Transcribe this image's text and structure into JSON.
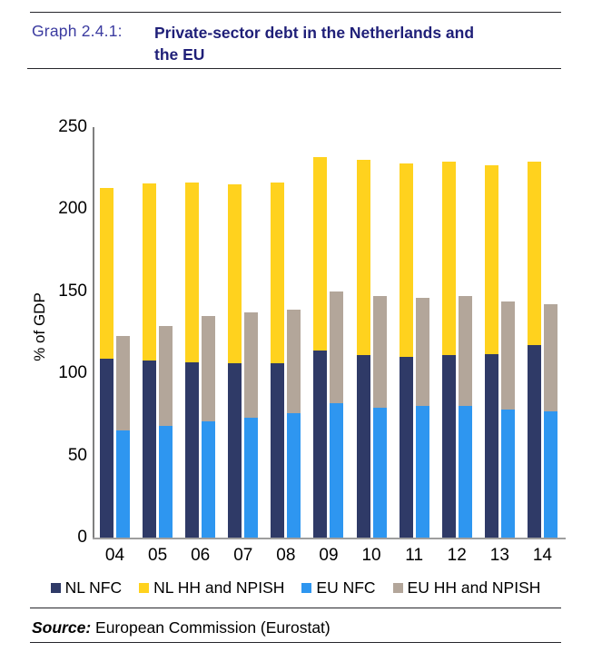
{
  "header": {
    "label": "Graph 2.4.1:",
    "title_lines": [
      "Private-sector debt in the Netherlands and",
      "the EU"
    ]
  },
  "chart_data": {
    "type": "bar",
    "stacked": true,
    "title": "Private-sector debt in the Netherlands and the EU",
    "xlabel": "",
    "ylabel": "% of GDP",
    "ylim": [
      0,
      250
    ],
    "yticks": [
      0,
      50,
      100,
      150,
      200,
      250
    ],
    "grid": false,
    "legend_position": "bottom",
    "categories": [
      "04",
      "05",
      "06",
      "07",
      "08",
      "09",
      "10",
      "11",
      "12",
      "13",
      "14"
    ],
    "stacks": [
      {
        "name": "NL",
        "series_names": [
          "NL NFC",
          "NL HH and NPISH"
        ]
      },
      {
        "name": "EU",
        "series_names": [
          "EU NFC",
          "EU HH and NPISH"
        ]
      }
    ],
    "series": [
      {
        "name": "NL NFC",
        "stack": "NL",
        "color": "#2f3a67",
        "values": [
          109,
          108,
          107,
          106,
          106,
          114,
          111,
          110,
          111,
          112,
          117
        ]
      },
      {
        "name": "NL HH and NPISH",
        "stack": "NL",
        "color": "#ffd21e",
        "values": [
          104,
          108,
          109,
          109,
          110,
          118,
          119,
          118,
          118,
          115,
          112
        ]
      },
      {
        "name": "EU NFC",
        "stack": "EU",
        "color": "#2e96f0",
        "values": [
          65,
          68,
          71,
          73,
          76,
          82,
          79,
          80,
          80,
          78,
          77
        ]
      },
      {
        "name": "EU HH and NPISH",
        "stack": "EU",
        "color": "#b3a69a",
        "values": [
          58,
          61,
          64,
          64,
          63,
          68,
          68,
          66,
          67,
          66,
          65
        ]
      }
    ],
    "stack_totals_note": "NL totals: 213,216,216,215,216,232,230,228,229,227,229 — EU totals: 123,129,135,137,139,150,147,146,147,144,142"
  },
  "source": {
    "label": "Source:",
    "text": "European Commission (Eurostat)"
  }
}
